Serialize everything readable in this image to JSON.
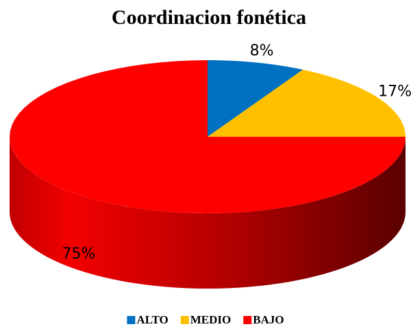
{
  "chart_data": {
    "type": "pie",
    "title": "Coordinacion fonética",
    "categories": [
      "ALTO",
      "MEDIO",
      "BAJO"
    ],
    "values": [
      8,
      17,
      75
    ],
    "value_labels": [
      "8%",
      "17%",
      "75%"
    ],
    "colors": [
      "#0070c0",
      "#ffc000",
      "#ff0000"
    ],
    "legend": "bottom"
  }
}
